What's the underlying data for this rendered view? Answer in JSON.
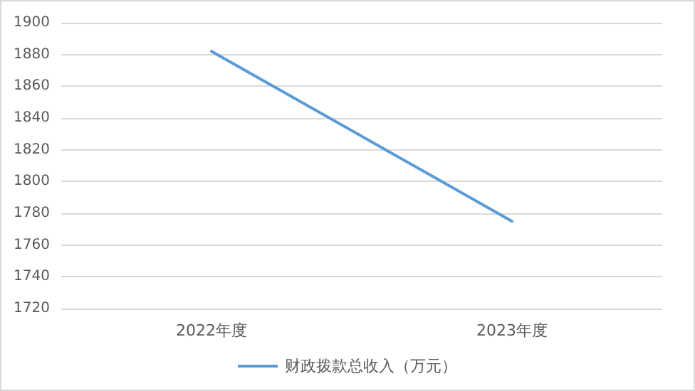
{
  "chart_data": {
    "type": "line",
    "categories": [
      "2022年度",
      "2023年度"
    ],
    "series": [
      {
        "name": "财政拨款总收入（万元）",
        "color": "#5b9bd5",
        "values": [
          1882,
          1775
        ]
      }
    ],
    "ylim": [
      1720,
      1900
    ],
    "yticks": [
      1720,
      1740,
      1760,
      1780,
      1800,
      1820,
      1840,
      1860,
      1880,
      1900
    ],
    "grid": "y",
    "legend": "bottom",
    "marker": "none",
    "line_style": "solid"
  }
}
